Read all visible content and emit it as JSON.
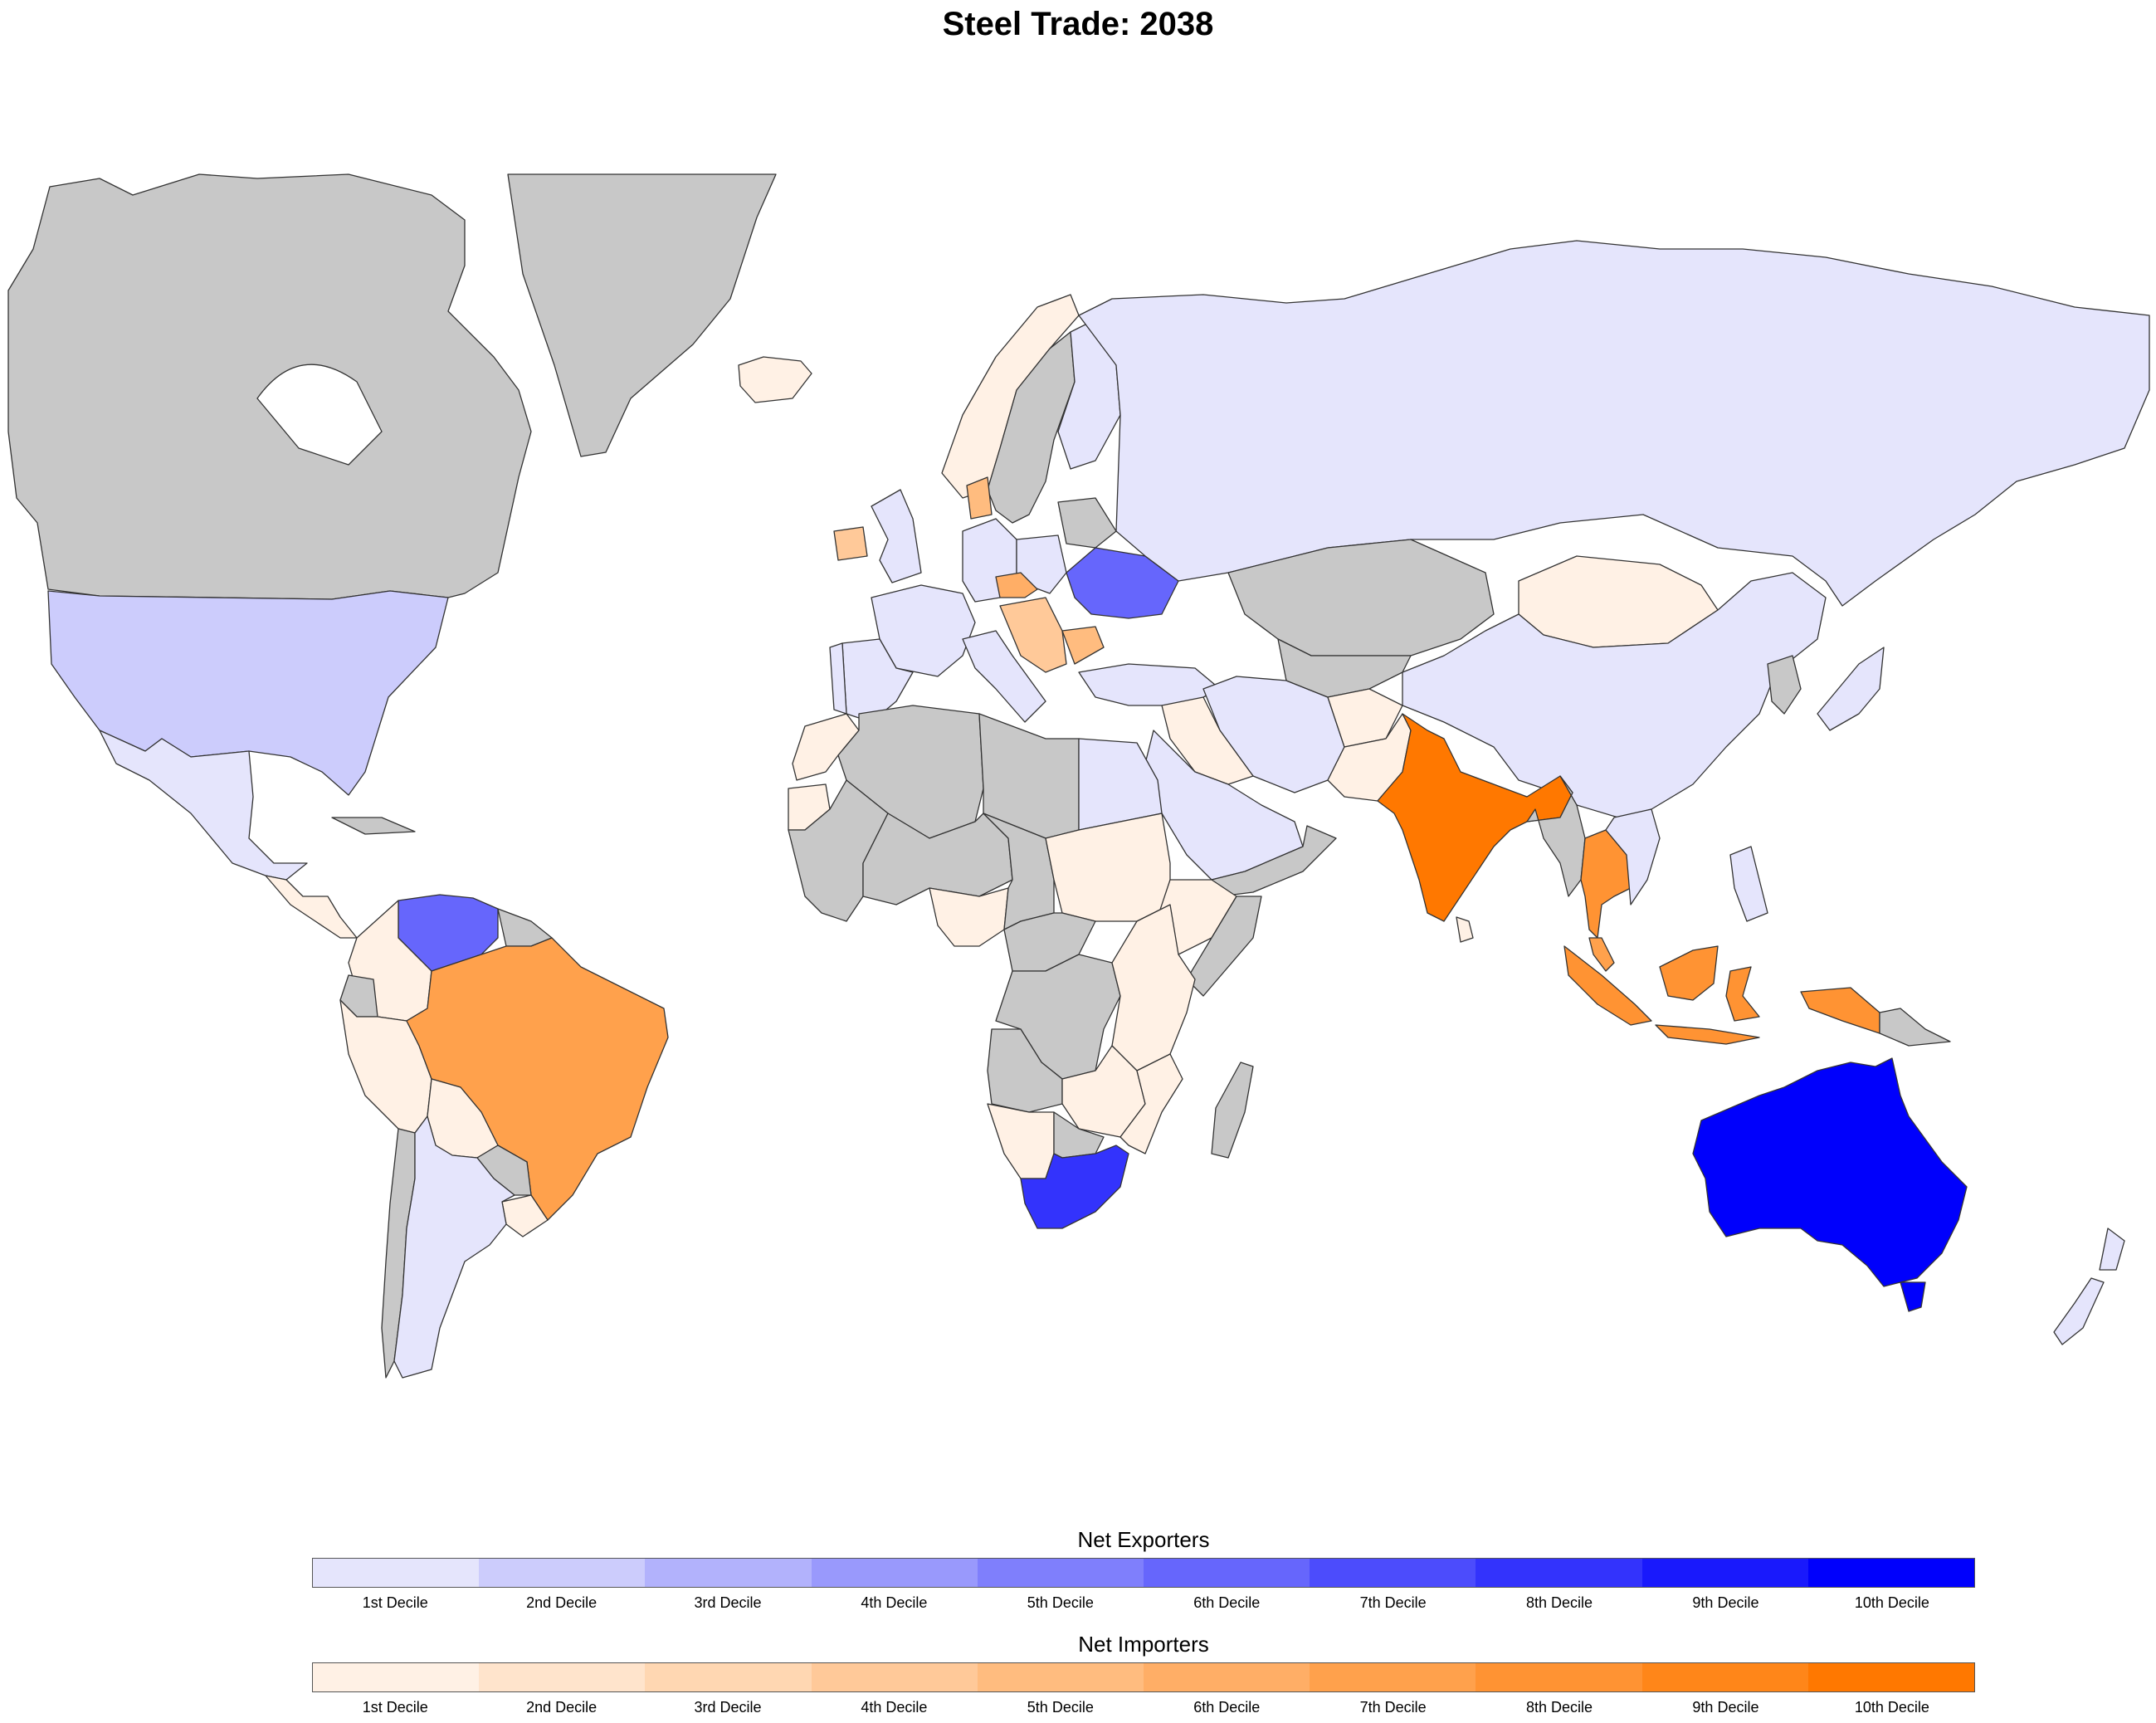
{
  "title": "Steel Trade: 2038",
  "colors": {
    "no_data": "#c8c8c8",
    "border": "#333333",
    "ocean": "#ffffff",
    "exporters": [
      "#e5e5fc",
      "#ccccfc",
      "#b2b2fc",
      "#9999fc",
      "#7f7ffc",
      "#6666fc",
      "#4c4cfc",
      "#3333fc",
      "#1919fc",
      "#0000fc"
    ],
    "importers": [
      "#fff1e5",
      "#ffe4cc",
      "#ffd7b2",
      "#ffc999",
      "#ffbc7f",
      "#ffae66",
      "#ffa14c",
      "#ff9333",
      "#ff8619",
      "#ff7800"
    ]
  },
  "regions": {
    "canada": "no-data",
    "greenland": "no-data",
    "usa": "exp-2",
    "mexico": "exp-1",
    "central-america": "imp-1",
    "cuba": "no-data",
    "venezuela": "exp-6",
    "guyana-suriname": "no-data",
    "colombia": "imp-1",
    "ecuador": "no-data",
    "peru": "imp-1",
    "bolivia": "imp-1",
    "brazil": "imp-7",
    "paraguay": "no-data",
    "uruguay": "imp-1",
    "chile": "no-data",
    "argentina": "exp-1",
    "iceland": "imp-1",
    "norway": "imp-1",
    "sweden": "no-data",
    "finland": "exp-1",
    "uk": "exp-1",
    "ireland": "imp-4",
    "france": "exp-1",
    "spain": "exp-1",
    "portugal": "exp-1",
    "germany": "exp-1",
    "denmark": "imp-5",
    "poland": "exp-1",
    "czechia": "imp-6",
    "italy": "exp-1",
    "balkans": "imp-4",
    "bulgaria": "imp-5",
    "belarus": "no-data",
    "ukraine": "exp-6",
    "turkey": "exp-1",
    "russia": "exp-1",
    "kazakhstan": "no-data",
    "mongolia": "imp-1",
    "china": "exp-1",
    "japan": "exp-1",
    "korea": "no-data",
    "iran": "exp-1",
    "central-asia": "no-data",
    "afghanistan": "imp-1",
    "pakistan": "imp-1",
    "iraq-syria": "imp-1",
    "saudi-arabia": "exp-1",
    "yemen-oman": "no-data",
    "india": "imp-10",
    "sri-lanka": "imp-1",
    "myanmar": "no-data",
    "thailand": "imp-8",
    "vietnam": "exp-1",
    "malaysia": "imp-7",
    "philippines": "exp-1",
    "indonesia": "imp-8",
    "png": "no-data",
    "australia": "exp-10",
    "tasmania": "exp-10",
    "new-zealand": "exp-1",
    "morocco": "imp-1",
    "western-sahara": "imp-1",
    "algeria": "no-data",
    "libya": "no-data",
    "egypt": "exp-1",
    "west-africa": "no-data",
    "mali-niger": "no-data",
    "nigeria": "imp-1",
    "chad": "no-data",
    "sudan": "imp-1",
    "ethiopia": "imp-1",
    "somalia": "no-data",
    "central-africa": "no-data",
    "drc": "no-data",
    "kenya-tanzania": "imp-1",
    "angola": "no-data",
    "zambia-zimbabwe": "imp-1",
    "namibia": "imp-1",
    "botswana": "no-data",
    "mozambique": "imp-1",
    "south-africa": "exp-8",
    "madagascar": "no-data"
  },
  "legend": {
    "exporters": {
      "title": "Net Exporters",
      "labels": [
        "1st Decile",
        "2nd Decile",
        "3rd Decile",
        "4th Decile",
        "5th Decile",
        "6th Decile",
        "7th Decile",
        "8th Decile",
        "9th Decile",
        "10th Decile"
      ]
    },
    "importers": {
      "title": "Net Importers",
      "labels": [
        "1st Decile",
        "2nd Decile",
        "3rd Decile",
        "4th Decile",
        "5th Decile",
        "6th Decile",
        "7th Decile",
        "8th Decile",
        "9th Decile",
        "10th Decile"
      ]
    }
  }
}
